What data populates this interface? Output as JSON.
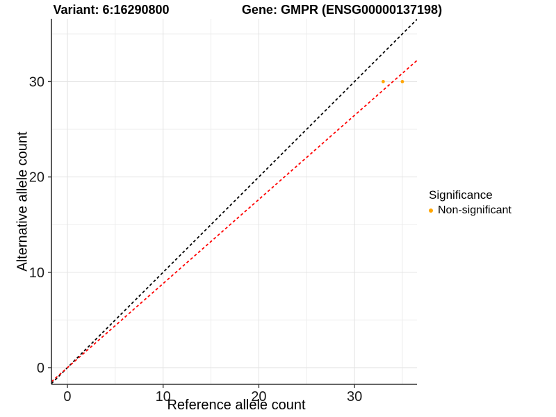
{
  "titles": {
    "variant": "Variant: 6:16290800",
    "gene": "Gene: GMPR (ENSG00000137198)"
  },
  "legend": {
    "title": "Significance",
    "items": [
      {
        "label": "Non-significant",
        "color": "#FFA500"
      }
    ]
  },
  "colors": {
    "identity_line": "#000000",
    "fit_line": "#FF0000",
    "point": "#FFA500",
    "grid_major": "#E2E2E2",
    "grid_minor": "#EDEDED",
    "axis_line": "#333333",
    "tick_mark": "#333333"
  },
  "chart_data": {
    "type": "scatter",
    "title_left": "Variant: 6:16290800",
    "title_right": "Gene: GMPR (ENSG00000137198)",
    "xlabel": "Reference allele count",
    "ylabel": "Alternative allele count",
    "xlim": [
      -1.67,
      36.53
    ],
    "ylim": [
      -1.75,
      36.59
    ],
    "x_major_ticks": [
      0,
      10,
      20,
      30
    ],
    "y_major_ticks": [
      0,
      10,
      20,
      30
    ],
    "x_minor_ticks": [
      5,
      15,
      25,
      35
    ],
    "y_minor_ticks": [
      5,
      15,
      25,
      35
    ],
    "grid": true,
    "legend_position": "right",
    "series": [
      {
        "name": "Non-significant",
        "color": "#FFA500",
        "points": [
          {
            "x": 33,
            "y": 30
          },
          {
            "x": 35,
            "y": 30
          }
        ]
      }
    ],
    "lines": [
      {
        "name": "identity",
        "slope": 1.0,
        "intercept": 0,
        "color": "#000000",
        "style": "dashed"
      },
      {
        "name": "fit",
        "slope": 0.882,
        "intercept": 0,
        "color": "#FF0000",
        "style": "dashed"
      }
    ]
  }
}
